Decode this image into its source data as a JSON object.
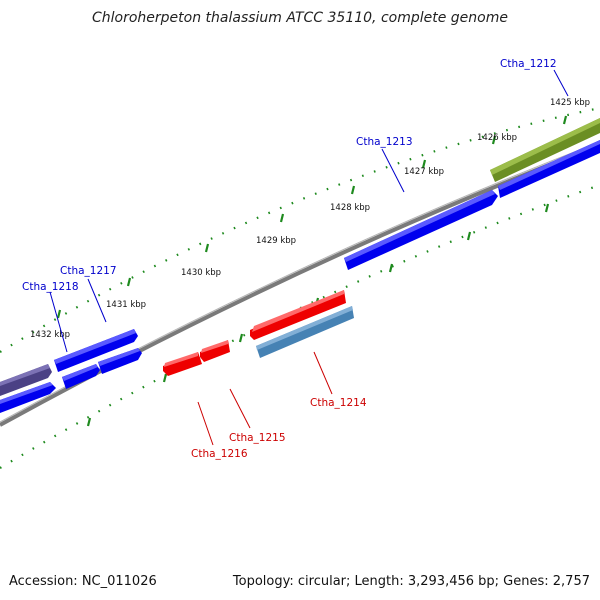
{
  "title": "Chloroherpeton thalassium ATCC 35110, complete genome",
  "footer": {
    "accession": "Accession: NC_011026",
    "topology": "Topology: circular; Length: 3,293,456 bp; Genes: 2,757"
  },
  "colors": {
    "backbone": "#808080",
    "tick": "#1e8a1e",
    "forward_gene": "#0000ee",
    "reverse_gene": "#ee0000",
    "steelblue_gene": "#4682b4",
    "olive_gene": "#6b8e23",
    "purple_gene": "#4b4185",
    "forward_label": "#0000cc",
    "reverse_label": "#cc0000"
  },
  "scale_labels": [
    "1425 kbp",
    "1426 kbp",
    "1427 kbp",
    "1428 kbp",
    "1429 kbp",
    "1430 kbp",
    "1431 kbp",
    "1432 kbp"
  ],
  "gene_labels": {
    "ctha_1212": "Ctha_1212",
    "ctha_1213": "Ctha_1213",
    "ctha_1214": "Ctha_1214",
    "ctha_1215": "Ctha_1215",
    "ctha_1216": "Ctha_1216",
    "ctha_1217": "Ctha_1217",
    "ctha_1218": "Ctha_1218"
  }
}
